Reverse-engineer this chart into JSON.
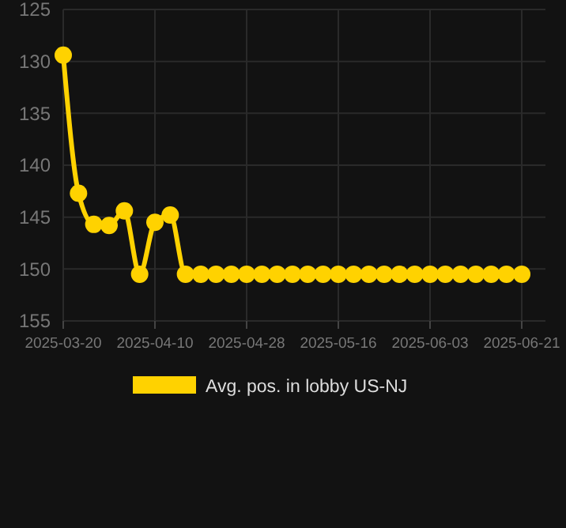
{
  "chart_data": {
    "type": "line",
    "categories": [
      "2025-03-20",
      null,
      null,
      null,
      null,
      null,
      "2025-04-10",
      null,
      null,
      null,
      null,
      null,
      "2025-04-28",
      null,
      null,
      null,
      null,
      null,
      "2025-05-16",
      null,
      null,
      null,
      null,
      null,
      "2025-06-03",
      null,
      null,
      null,
      null,
      null,
      "2025-06-21"
    ],
    "series": [
      {
        "name": "Avg. pos. in lobby US-NJ",
        "color": "#ffd200",
        "values": [
          129.4,
          142.7,
          145.7,
          145.8,
          144.4,
          150.5,
          145.5,
          144.8,
          150.5,
          150.5,
          150.5,
          150.5,
          150.5,
          150.5,
          150.5,
          150.5,
          150.5,
          150.5,
          150.5,
          150.5,
          150.5,
          150.5,
          150.5,
          150.5,
          150.5,
          150.5,
          150.5,
          150.5,
          150.5,
          150.5,
          150.5
        ]
      }
    ],
    "ylim": [
      155,
      125
    ],
    "yticks": [
      125,
      130,
      135,
      140,
      145,
      150,
      155
    ],
    "grid": true,
    "legend": "bottom",
    "marker": "circle",
    "line_style": "solid"
  }
}
